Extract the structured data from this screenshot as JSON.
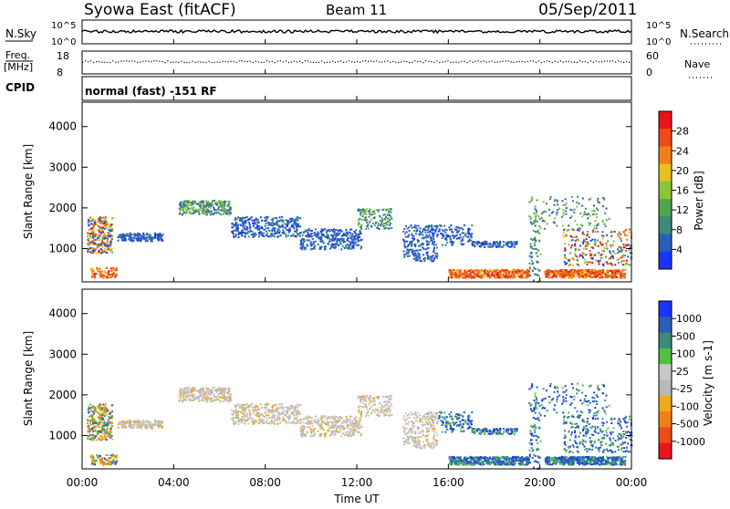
{
  "header": {
    "station": "Syowa East (fitACF)",
    "beam": "Beam 11",
    "date": "05/Sep/2011"
  },
  "strips": {
    "nsky_label": "N.Sky",
    "nsky_ticks": [
      "10^5",
      "10^0"
    ],
    "nsearch_label": "N.Search",
    "nsearch_ticks": [
      "10^5",
      "10^0"
    ],
    "freq_label": "Freq.",
    "freq_unit": "[MHz]",
    "freq_ticks": [
      "18",
      "8"
    ],
    "nave_label": "Nave",
    "nave_ticks": [
      "60",
      "0"
    ],
    "cpid_label": "CPID",
    "cpid_text": "normal (fast) -151 RF"
  },
  "colors": {
    "axis": "#000000",
    "power_scale": [
      "#1a33ff",
      "#2a5fb8",
      "#3d8a7a",
      "#52a34f",
      "#8cc43a",
      "#e6c11e",
      "#f07f17",
      "#ef4a1a",
      "#e8141c"
    ],
    "velocity_scale": [
      "#e8141c",
      "#ef4a1a",
      "#f07f17",
      "#f0a91c",
      "#b8b8b8",
      "#c8c8c8",
      "#52c042",
      "#3d8a7a",
      "#2a5fb8",
      "#1a33ff"
    ]
  },
  "chart_data": [
    {
      "type": "heatmap",
      "name": "power",
      "ylabel": "Slant Range [km]",
      "xlabel": "Time UT",
      "yticks": [
        "1000",
        "2000",
        "3000",
        "4000"
      ],
      "ylim": [
        180,
        4600
      ],
      "xlim": [
        0,
        24
      ],
      "colorbar_label": "Power [dB]",
      "colorbar_ticks": [
        "4",
        "8",
        "12",
        "16",
        "20",
        "24",
        "28"
      ],
      "colorbar_range": [
        0,
        32
      ]
    },
    {
      "type": "heatmap",
      "name": "velocity",
      "ylabel": "Slant Range [km]",
      "xlabel": "Time UT",
      "yticks": [
        "1000",
        "2000",
        "3000",
        "4000"
      ],
      "xticks": [
        "00:00",
        "04:00",
        "08:00",
        "12:00",
        "16:00",
        "20:00",
        "00:00"
      ],
      "ylim": [
        180,
        4600
      ],
      "xlim": [
        0,
        24
      ],
      "colorbar_label": "Velocity [m s-1]",
      "colorbar_ticks": [
        "1000",
        "500",
        "100",
        "25",
        "-25",
        "-100",
        "-500",
        "-1000"
      ]
    }
  ]
}
